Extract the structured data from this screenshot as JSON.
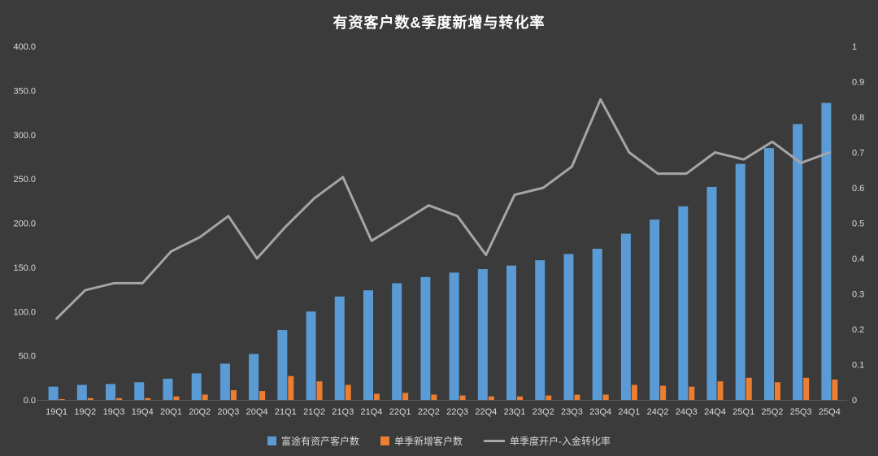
{
  "title": "有资客户数&季度新增与转化率",
  "colors": {
    "background": "#3B3B3B",
    "bar_blue": "#5B9BD5",
    "bar_orange": "#ED7D31",
    "line_gray": "#A5A5A5",
    "axis_text": "#D9D9D9",
    "title_text": "#FFFFFF"
  },
  "chart_data": {
    "type": "bar",
    "title": "有资客户数&季度新增与转化率",
    "legend_position": "bottom",
    "grid": false,
    "categories": [
      "19Q1",
      "19Q2",
      "19Q3",
      "19Q4",
      "20Q1",
      "20Q2",
      "20Q3",
      "20Q4",
      "21Q1",
      "21Q2",
      "21Q3",
      "21Q4",
      "22Q1",
      "22Q2",
      "22Q3",
      "22Q4",
      "23Q1",
      "23Q2",
      "23Q3",
      "23Q4",
      "24Q1",
      "24Q2",
      "24Q3",
      "24Q4",
      "25Q1",
      "25Q2",
      "25Q3",
      "25Q4"
    ],
    "series": [
      {
        "name": "富途有资产客户数",
        "type": "bar",
        "axis": "left",
        "color": "#5B9BD5",
        "values": [
          15,
          17,
          18,
          20,
          24,
          30,
          41,
          52,
          79,
          100,
          117,
          124,
          132,
          139,
          144,
          148,
          152,
          158,
          165,
          171,
          188,
          204,
          219,
          241,
          267,
          285,
          312,
          336
        ]
      },
      {
        "name": "单季新增客户数",
        "type": "bar",
        "axis": "left",
        "color": "#ED7D31",
        "values": [
          1,
          2,
          2,
          2,
          4,
          6,
          11,
          10,
          27,
          21,
          17,
          7,
          8,
          6,
          5,
          4,
          4,
          5,
          6,
          6,
          17,
          16,
          15,
          21,
          25,
          20,
          25,
          23
        ]
      },
      {
        "name": "单季度开户-入金转化率",
        "type": "line",
        "axis": "right",
        "color": "#A5A5A5",
        "values": [
          0.23,
          0.31,
          0.33,
          0.33,
          0.42,
          0.46,
          0.52,
          0.4,
          0.49,
          0.57,
          0.63,
          0.45,
          0.5,
          0.55,
          0.52,
          0.41,
          0.58,
          0.6,
          0.66,
          0.85,
          0.7,
          0.64,
          0.64,
          0.7,
          0.68,
          0.73,
          0.67,
          0.7
        ]
      }
    ],
    "left_axis": {
      "min": 0,
      "max": 400,
      "step": 50,
      "tick_labels": [
        "400.0",
        "350.0",
        "300.0",
        "250.0",
        "200.0",
        "150.0",
        "100.0",
        "50.0",
        "0.0"
      ]
    },
    "right_axis": {
      "min": 0,
      "max": 1,
      "step": 0.1,
      "tick_labels": [
        "1",
        "0.9",
        "0.8",
        "0.7",
        "0.6",
        "0.5",
        "0.4",
        "0.3",
        "0.2",
        "0.1",
        "0"
      ]
    }
  }
}
